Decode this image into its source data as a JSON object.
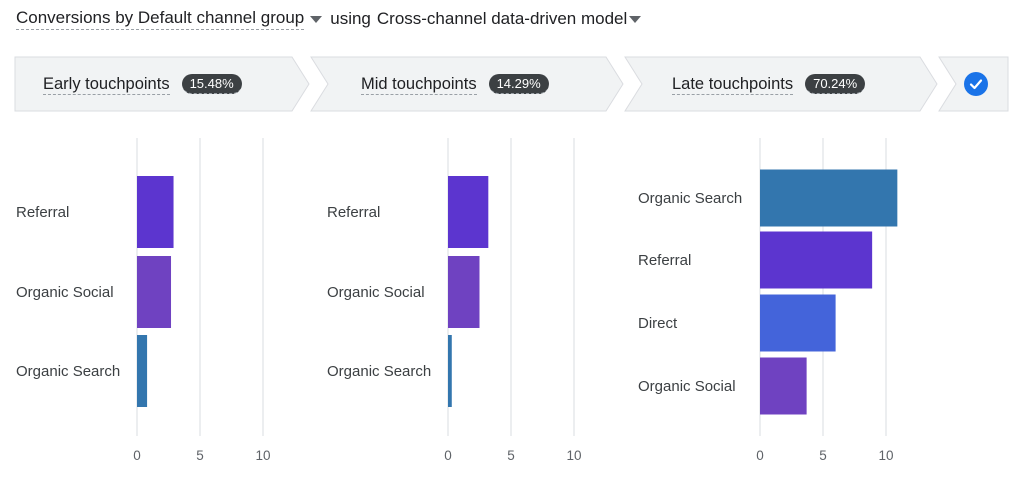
{
  "header": {
    "metric_label": "Conversions by Default channel group",
    "model_prefix": "using",
    "model_label": "Cross-channel data-driven model"
  },
  "stages": [
    {
      "label": "Early touchpoints",
      "percent": "15.48%"
    },
    {
      "label": "Mid touchpoints",
      "percent": "14.29%"
    },
    {
      "label": "Late touchpoints",
      "percent": "70.24%"
    }
  ],
  "colors": {
    "Referral": "#5c35cf",
    "Organic Social": "#6f42c1",
    "Organic Search": "#3376ae",
    "Direct": "#4464da",
    "gridline": "#dadce0",
    "stage_fill": "#f1f3f4",
    "stage_border": "#dadce0",
    "check": "#1a73e8"
  },
  "chart_data": [
    {
      "type": "bar",
      "orientation": "horizontal",
      "title": "Early touchpoints",
      "categories": [
        "Referral",
        "Organic Social",
        "Organic Search"
      ],
      "values": [
        2.9,
        2.7,
        0.8
      ],
      "xlim": [
        0,
        10
      ],
      "xticks": [
        0,
        5,
        10
      ],
      "grid": true
    },
    {
      "type": "bar",
      "orientation": "horizontal",
      "title": "Mid touchpoints",
      "categories": [
        "Referral",
        "Organic Social",
        "Organic Search"
      ],
      "values": [
        3.2,
        2.5,
        0.3
      ],
      "xlim": [
        0,
        10
      ],
      "xticks": [
        0,
        5,
        10
      ],
      "grid": true
    },
    {
      "type": "bar",
      "orientation": "horizontal",
      "title": "Late touchpoints",
      "categories": [
        "Organic Search",
        "Referral",
        "Direct",
        "Organic Social"
      ],
      "values": [
        10.9,
        8.9,
        6.0,
        3.7
      ],
      "xlim": [
        0,
        10
      ],
      "xticks": [
        0,
        5,
        10
      ],
      "grid": true
    }
  ]
}
